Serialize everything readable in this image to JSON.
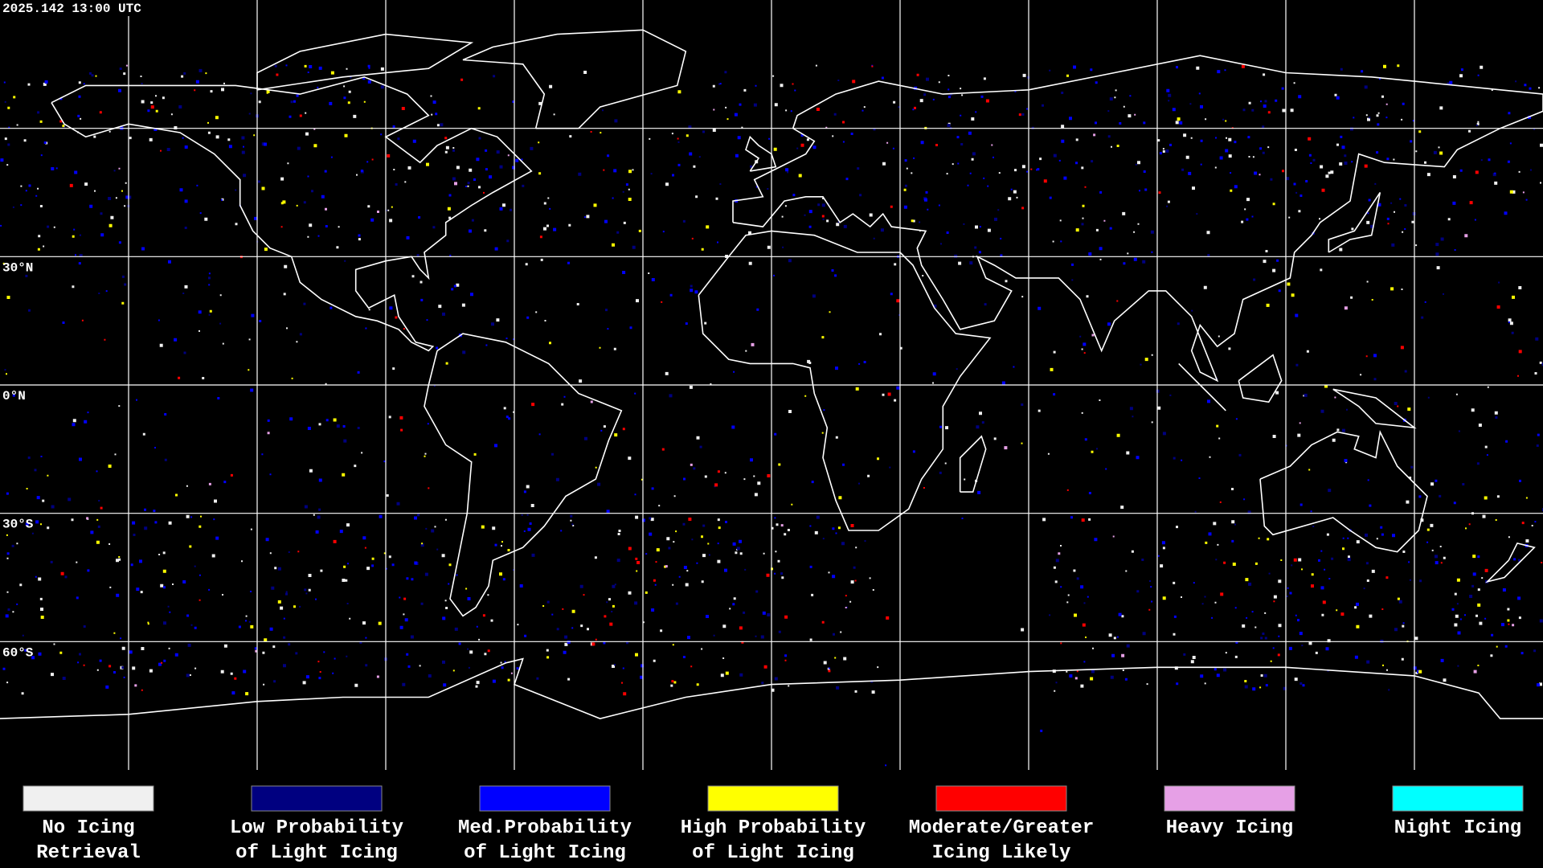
{
  "header": {
    "timestamp": "2025.142 13:00 UTC"
  },
  "map": {
    "latitude_labels": [
      "30°N",
      "0°N",
      "30°S",
      "60°S"
    ]
  },
  "legend": {
    "items": [
      {
        "color": "#f0f0f0",
        "label": [
          "No Icing",
          "Retrieval"
        ]
      },
      {
        "color": "#000080",
        "label": [
          "Low Probability",
          "of Light Icing"
        ]
      },
      {
        "color": "#0000ff",
        "label": [
          "Med.Probability",
          "of Light Icing"
        ]
      },
      {
        "color": "#ffff00",
        "label": [
          "High Probability",
          "of Light Icing"
        ]
      },
      {
        "color": "#ff0000",
        "label": [
          "Moderate/Greater",
          "Icing Likely"
        ]
      },
      {
        "color": "#e6a0e6",
        "label": [
          "Heavy Icing"
        ]
      },
      {
        "color": "#00ffff",
        "label": [
          "Night Icing"
        ]
      }
    ]
  }
}
